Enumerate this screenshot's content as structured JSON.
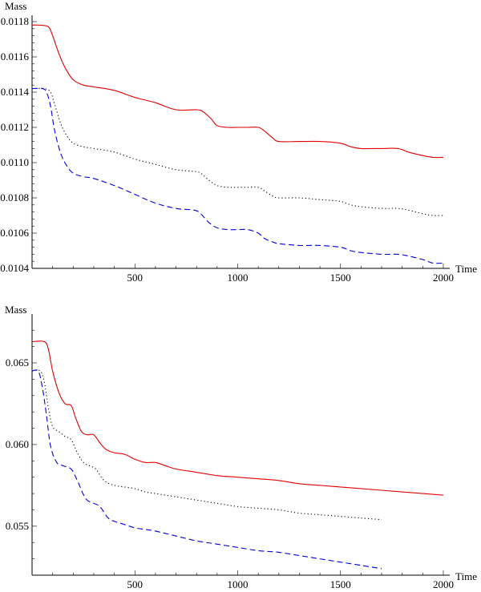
{
  "chart_data": [
    {
      "type": "line",
      "xlabel": "Time",
      "ylabel": "Mass",
      "xlim": [
        0,
        2000
      ],
      "ylim": [
        0.0104,
        0.0118
      ],
      "xticks": [
        500,
        1000,
        1500,
        2000
      ],
      "xtick_labels": [
        "500",
        "1000",
        "1500",
        "2000"
      ],
      "yticks": [
        0.0104,
        0.0106,
        0.0108,
        0.011,
        0.0112,
        0.0114,
        0.0116,
        0.0118
      ],
      "ytick_labels": [
        "0.0104",
        "0.0106",
        "0.0108",
        "0.0110",
        "0.0112",
        "0.0114",
        "0.0116",
        "0.0118"
      ],
      "series": [
        {
          "color": "#e00000",
          "dash": "solid",
          "x": [
            0,
            40,
            80,
            100,
            130,
            160,
            200,
            250,
            300,
            400,
            500,
            600,
            700,
            800,
            830,
            870,
            900,
            950,
            1000,
            1050,
            1100,
            1130,
            1170,
            1200,
            1300,
            1400,
            1500,
            1550,
            1600,
            1700,
            1780,
            1830,
            1900,
            1950,
            2000
          ],
          "y": [
            0.01178,
            0.01178,
            0.01177,
            0.01172,
            0.01162,
            0.01154,
            0.01147,
            0.01144,
            0.01143,
            0.01141,
            0.01137,
            0.01134,
            0.0113,
            0.0113,
            0.01129,
            0.01125,
            0.01121,
            0.0112,
            0.0112,
            0.0112,
            0.0112,
            0.01118,
            0.01114,
            0.01112,
            0.01112,
            0.01112,
            0.01111,
            0.01109,
            0.01108,
            0.01108,
            0.01108,
            0.01106,
            0.01104,
            0.01103,
            0.01103
          ]
        },
        {
          "color": "#000000",
          "dash": "dotted",
          "x": [
            0,
            60,
            90,
            110,
            140,
            170,
            200,
            250,
            300,
            400,
            500,
            600,
            700,
            790,
            820,
            860,
            900,
            950,
            1000,
            1050,
            1100,
            1130,
            1170,
            1200,
            1300,
            1400,
            1500,
            1550,
            1600,
            1700,
            1780,
            1830,
            1900,
            1950,
            2000
          ],
          "y": [
            0.01142,
            0.01142,
            0.0114,
            0.01133,
            0.01122,
            0.01115,
            0.01111,
            0.01109,
            0.01108,
            0.01106,
            0.01102,
            0.01099,
            0.01096,
            0.01095,
            0.01094,
            0.0109,
            0.01087,
            0.01086,
            0.01086,
            0.01086,
            0.01086,
            0.01084,
            0.01081,
            0.0108,
            0.0108,
            0.01079,
            0.01078,
            0.01076,
            0.01075,
            0.01074,
            0.01074,
            0.01073,
            0.01071,
            0.0107,
            0.0107
          ]
        },
        {
          "color": "#0000dd",
          "dash": "dashed",
          "x": [
            0,
            50,
            70,
            90,
            110,
            140,
            170,
            200,
            250,
            300,
            400,
            500,
            600,
            700,
            790,
            820,
            860,
            900,
            950,
            1000,
            1050,
            1100,
            1130,
            1170,
            1200,
            1300,
            1400,
            1500,
            1550,
            1600,
            1700,
            1780,
            1830,
            1900,
            1950,
            2000
          ],
          "y": [
            0.01142,
            0.01142,
            0.0114,
            0.01132,
            0.01118,
            0.01105,
            0.01098,
            0.01094,
            0.01092,
            0.01091,
            0.01087,
            0.01082,
            0.01077,
            0.01074,
            0.01073,
            0.01071,
            0.01066,
            0.01063,
            0.01062,
            0.01062,
            0.01062,
            0.0106,
            0.01057,
            0.01055,
            0.01054,
            0.01053,
            0.01053,
            0.01052,
            0.0105,
            0.01049,
            0.01048,
            0.01048,
            0.01047,
            0.01045,
            0.01043,
            0.01043
          ]
        }
      ]
    },
    {
      "type": "line",
      "xlabel": "Time",
      "ylabel": "Mass",
      "xlim": [
        0,
        2000
      ],
      "ylim": [
        0.052,
        0.0676
      ],
      "xticks": [
        500,
        1000,
        1500,
        2000
      ],
      "xtick_labels": [
        "500",
        "1000",
        "1500",
        "2000"
      ],
      "yticks": [
        0.055,
        0.06,
        0.065
      ],
      "ytick_labels": [
        "0.055",
        "0.060",
        "0.065"
      ],
      "series": [
        {
          "color": "#e00000",
          "dash": "solid",
          "x": [
            0,
            60,
            80,
            100,
            130,
            160,
            190,
            210,
            240,
            270,
            300,
            330,
            360,
            400,
            450,
            500,
            550,
            600,
            650,
            700,
            800,
            900,
            1000,
            1100,
            1200,
            1300,
            1400,
            1500,
            1600,
            1700,
            1800,
            1900,
            2000
          ],
          "y": [
            0.0663,
            0.0663,
            0.0658,
            0.0645,
            0.0632,
            0.0625,
            0.0624,
            0.0617,
            0.0608,
            0.0606,
            0.0606,
            0.0601,
            0.0597,
            0.0595,
            0.0594,
            0.0591,
            0.0589,
            0.0589,
            0.0587,
            0.0585,
            0.0583,
            0.0581,
            0.058,
            0.0579,
            0.0578,
            0.0576,
            0.0575,
            0.0574,
            0.0573,
            0.0572,
            0.0571,
            0.057,
            0.0569
          ]
        },
        {
          "color": "#000000",
          "dash": "dotted",
          "x": [
            0,
            40,
            60,
            80,
            100,
            130,
            160,
            190,
            220,
            250,
            280,
            310,
            350,
            400,
            450,
            500,
            550,
            600,
            700,
            800,
            900,
            1000,
            1100,
            1200,
            1300,
            1400,
            1500,
            1600,
            1700
          ],
          "y": [
            0.0645,
            0.0645,
            0.0638,
            0.0622,
            0.0611,
            0.0608,
            0.0605,
            0.0603,
            0.0595,
            0.0589,
            0.0587,
            0.0585,
            0.0578,
            0.0575,
            0.0574,
            0.0573,
            0.0571,
            0.057,
            0.0568,
            0.0566,
            0.0564,
            0.0562,
            0.0561,
            0.056,
            0.0558,
            0.0557,
            0.0556,
            0.0555,
            0.0554
          ]
        },
        {
          "color": "#0000dd",
          "dash": "dashed",
          "x": [
            0,
            30,
            50,
            70,
            90,
            120,
            150,
            190,
            220,
            260,
            300,
            330,
            370,
            400,
            450,
            500,
            550,
            600,
            700,
            800,
            900,
            1000,
            1100,
            1200,
            1300,
            1400,
            1500,
            1600,
            1700
          ],
          "y": [
            0.0645,
            0.0645,
            0.0635,
            0.0618,
            0.0599,
            0.0589,
            0.0587,
            0.0585,
            0.0578,
            0.0567,
            0.0564,
            0.0562,
            0.0555,
            0.0553,
            0.0551,
            0.0549,
            0.0548,
            0.0547,
            0.0544,
            0.0541,
            0.0539,
            0.0537,
            0.0535,
            0.0534,
            0.0532,
            0.053,
            0.0528,
            0.0526,
            0.0524
          ]
        }
      ]
    }
  ]
}
